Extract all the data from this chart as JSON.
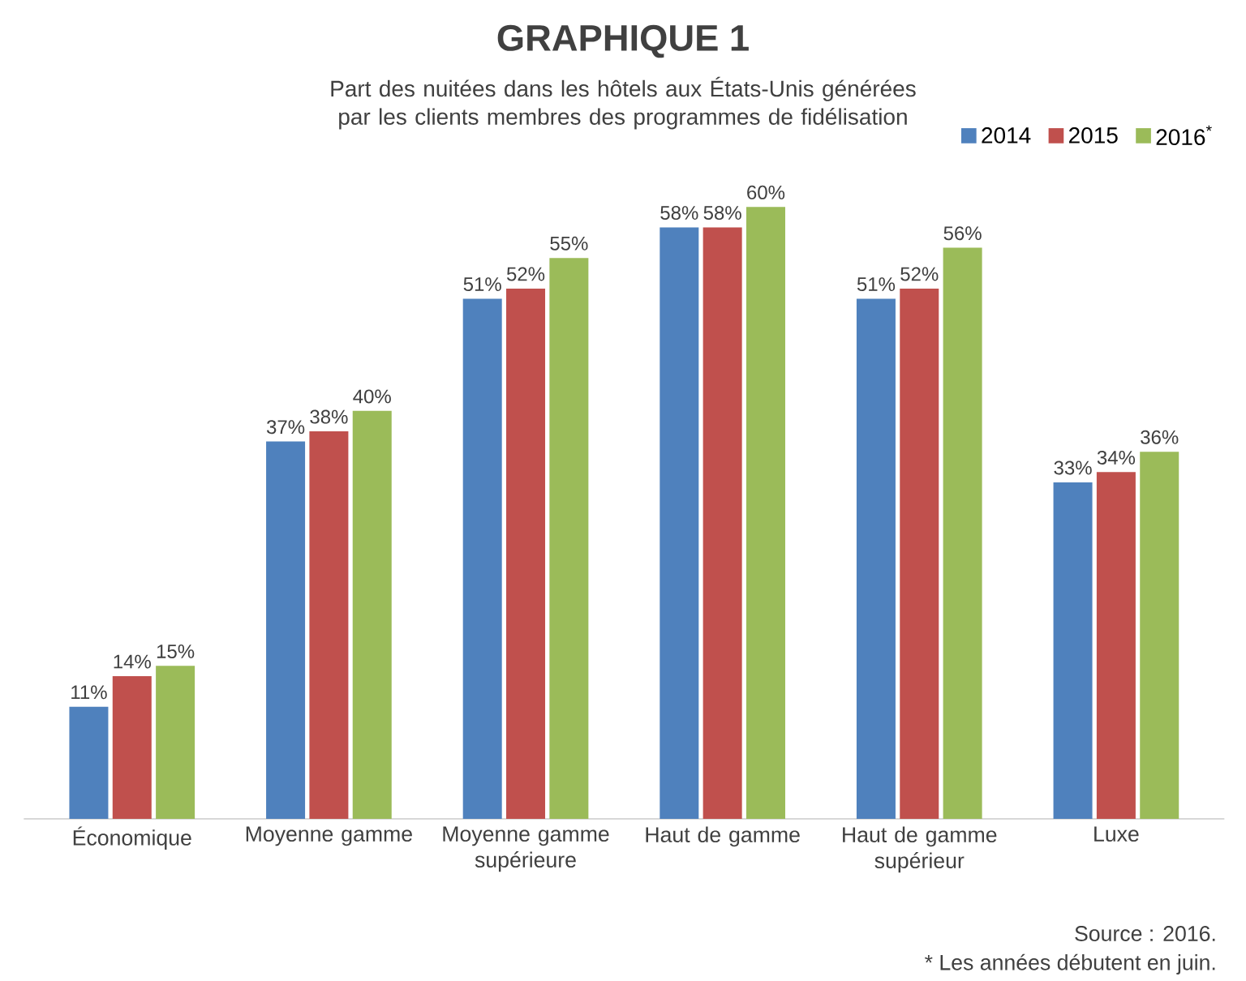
{
  "chart_data": {
    "type": "bar",
    "title": "GRAPHIQUE 1",
    "subtitle": "Part des nuitées dans les hôtels aux États-Unis générées par les clients membres des programmes de fidélisation",
    "categories": [
      "Économique",
      "Moyenne gamme",
      "Moyenne gamme supérieure",
      "Haut de gamme",
      "Haut de gamme supérieur",
      "Luxe"
    ],
    "series": [
      {
        "name": "2014",
        "color": "#4f81bd",
        "values": [
          11,
          37,
          51,
          58,
          51,
          33
        ],
        "value_labels": [
          "11%",
          "37%",
          "51%",
          "58%",
          "51%",
          "33%"
        ]
      },
      {
        "name": "2015",
        "color": "#c0504d",
        "values": [
          14,
          38,
          52,
          58,
          52,
          34
        ],
        "value_labels": [
          "14%",
          "38%",
          "52%",
          "58%",
          "52%",
          "34%"
        ]
      },
      {
        "name": "2016$^{*}$",
        "color": "#9bbb59",
        "values": [
          15,
          40,
          55,
          60,
          56,
          36
        ],
        "value_labels": [
          "15%",
          "40%",
          "55%",
          "60%",
          "56%",
          "36%"
        ]
      }
    ],
    "legend": "top right",
    "tick_labels": "x",
    "annotations": [
      "Source : 2016.",
      "* Les années débutent en juin."
    ]
  }
}
